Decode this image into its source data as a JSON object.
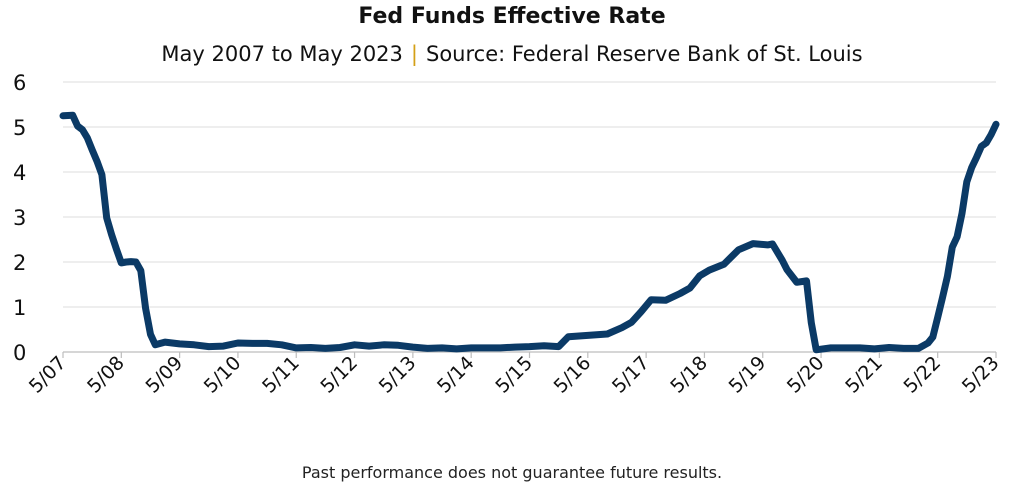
{
  "chart_data": {
    "type": "line",
    "title": "Fed Funds Effective Rate",
    "subtitle": "May 2007 to May 2023",
    "subtitle_separator": "|",
    "source": "Source: Federal Reserve Bank of St. Louis",
    "footnote": "Past performance does not guarantee future results.",
    "ylim": [
      0,
      6
    ],
    "yticks": [
      "0",
      "1",
      "2",
      "3",
      "4",
      "5",
      "6"
    ],
    "xtick_labels": [
      "5/07",
      "5/08",
      "5/09",
      "5/10",
      "5/11",
      "5/12",
      "5/13",
      "5/14",
      "5/15",
      "5/16",
      "5/17",
      "5/18",
      "5/19",
      "5/20",
      "5/21",
      "5/22",
      "5/23"
    ],
    "grid": true,
    "line_color": "#0b3a66",
    "series": [
      {
        "x": [
          "2007-05",
          "2007-07",
          "2007-08",
          "2007-09",
          "2007-10",
          "2007-11",
          "2007-12",
          "2008-01",
          "2008-02",
          "2008-03",
          "2008-04",
          "2008-05",
          "2008-06",
          "2008-07",
          "2008-08",
          "2008-09",
          "2008-10",
          "2008-11",
          "2008-12",
          "2009-02",
          "2009-05",
          "2009-08",
          "2009-11",
          "2010-02",
          "2010-05",
          "2010-08",
          "2010-11",
          "2011-02",
          "2011-05",
          "2011-08",
          "2011-11",
          "2012-02",
          "2012-05",
          "2012-08",
          "2012-11",
          "2013-02",
          "2013-05",
          "2013-08",
          "2013-11",
          "2014-02",
          "2014-05",
          "2014-08",
          "2014-11",
          "2015-02",
          "2015-05",
          "2015-08",
          "2015-11",
          "2016-01",
          "2016-05",
          "2016-09",
          "2016-12",
          "2017-02",
          "2017-04",
          "2017-06",
          "2017-09",
          "2017-12",
          "2018-02",
          "2018-04",
          "2018-06",
          "2018-09",
          "2018-12",
          "2019-03",
          "2019-06",
          "2019-07",
          "2019-09",
          "2019-10",
          "2019-12",
          "2020-02",
          "2020-03",
          "2020-04",
          "2020-07",
          "2020-10",
          "2021-01",
          "2021-04",
          "2021-07",
          "2021-10",
          "2022-01",
          "2022-03",
          "2022-04",
          "2022-05",
          "2022-06",
          "2022-07",
          "2022-08",
          "2022-09",
          "2022-10",
          "2022-11",
          "2022-12",
          "2023-01",
          "2023-02",
          "2023-03",
          "2023-04",
          "2023-05"
        ],
        "y": [
          5.25,
          5.26,
          5.02,
          4.94,
          4.76,
          4.49,
          4.24,
          3.94,
          2.98,
          2.61,
          2.28,
          1.98,
          2.0,
          2.01,
          2.0,
          1.81,
          0.97,
          0.39,
          0.16,
          0.22,
          0.18,
          0.16,
          0.12,
          0.13,
          0.2,
          0.19,
          0.19,
          0.16,
          0.09,
          0.1,
          0.08,
          0.1,
          0.16,
          0.13,
          0.16,
          0.15,
          0.11,
          0.08,
          0.09,
          0.07,
          0.09,
          0.09,
          0.09,
          0.11,
          0.12,
          0.14,
          0.12,
          0.34,
          0.37,
          0.4,
          0.54,
          0.66,
          0.9,
          1.16,
          1.15,
          1.3,
          1.42,
          1.69,
          1.82,
          1.95,
          2.27,
          2.41,
          2.38,
          2.4,
          2.04,
          1.83,
          1.55,
          1.58,
          0.65,
          0.05,
          0.09,
          0.09,
          0.09,
          0.07,
          0.1,
          0.08,
          0.08,
          0.2,
          0.33,
          0.77,
          1.21,
          1.68,
          2.33,
          2.56,
          3.08,
          3.78,
          4.1,
          4.33,
          4.57,
          4.65,
          4.83,
          5.06
        ]
      }
    ]
  }
}
